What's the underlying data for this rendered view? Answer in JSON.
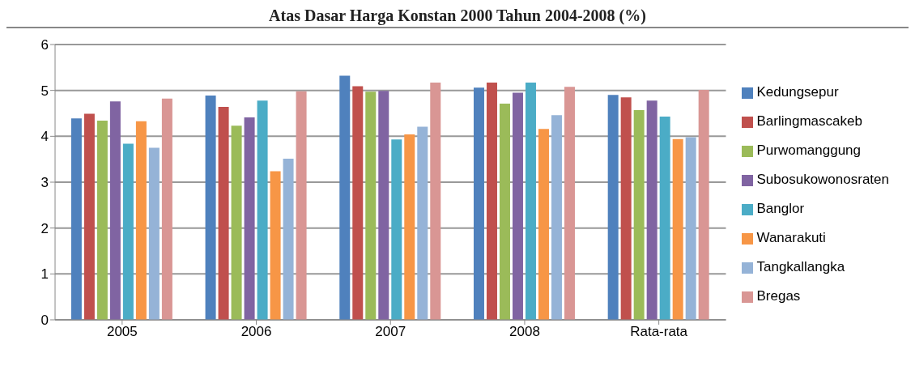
{
  "chart_data": {
    "type": "bar",
    "title": "Atas Dasar Harga Konstan 2000 Tahun 2004-2008 (%)",
    "categories": [
      "2005",
      "2006",
      "2007",
      "2008",
      "Rata-rata"
    ],
    "series": [
      {
        "name": "Kedungsepur",
        "color": "#4f81bd",
        "values": [
          4.39,
          4.89,
          5.32,
          5.06,
          4.9
        ]
      },
      {
        "name": "Barlingmascakeb",
        "color": "#c0504d",
        "values": [
          4.49,
          4.64,
          5.09,
          5.17,
          4.85
        ]
      },
      {
        "name": "Purwomanggung",
        "color": "#9bbb59",
        "values": [
          4.34,
          4.23,
          4.97,
          4.71,
          4.57
        ]
      },
      {
        "name": "Subosukowonosraten",
        "color": "#8064a2",
        "values": [
          4.76,
          4.41,
          4.99,
          4.95,
          4.78
        ]
      },
      {
        "name": "Banglor",
        "color": "#4bacc6",
        "values": [
          3.84,
          4.78,
          3.93,
          5.17,
          4.43
        ]
      },
      {
        "name": "Wanarakuti",
        "color": "#f79646",
        "values": [
          4.33,
          3.24,
          4.04,
          4.16,
          3.94
        ]
      },
      {
        "name": "Tangkallangka",
        "color": "#95b3d7",
        "values": [
          3.75,
          3.51,
          4.21,
          4.46,
          3.98
        ]
      },
      {
        "name": "Bregas",
        "color": "#d99694",
        "values": [
          4.82,
          4.98,
          5.17,
          5.08,
          5.01
        ]
      }
    ],
    "ylim": [
      0,
      6
    ],
    "yticks": [
      0,
      1,
      2,
      3,
      4,
      5,
      6
    ],
    "grid": "y",
    "legend": "right"
  }
}
